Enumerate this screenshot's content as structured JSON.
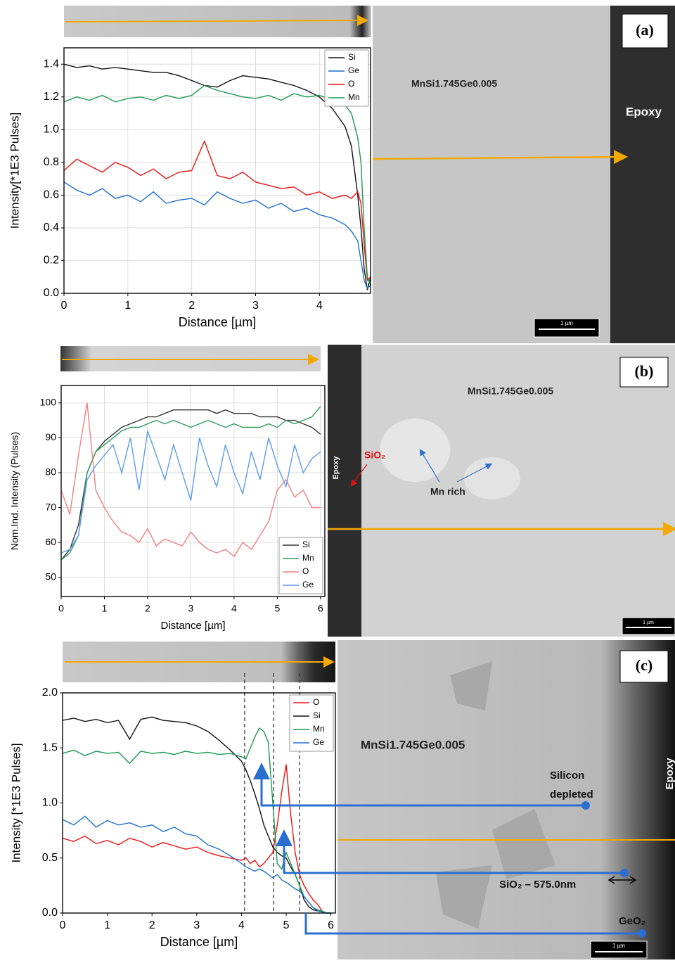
{
  "chart_data": [
    {
      "type": "line",
      "xlabel": "Distance [µm]",
      "ylabel": "Intensity[*1E3 Pulses]",
      "x": [
        0,
        0.2,
        0.4,
        0.6,
        0.8,
        1,
        1.2,
        1.4,
        1.6,
        1.8,
        2,
        2.2,
        2.4,
        2.6,
        2.8,
        3,
        3.2,
        3.4,
        3.6,
        3.8,
        4,
        4.2,
        4.4,
        4.5,
        4.6,
        4.65,
        4.7,
        4.75,
        4.8
      ],
      "xlim": [
        0,
        4.8
      ],
      "xticks": [
        0,
        1,
        2,
        3,
        4
      ],
      "ylim": [
        0,
        1.5
      ],
      "yticks": [
        {
          "value": 0,
          "label": "0.0"
        },
        0.2,
        0.4,
        0.6,
        0.8,
        {
          "value": 1,
          "label": "1.0"
        },
        1.2,
        1.4
      ],
      "grid": true,
      "legend": "upper right",
      "series": [
        {
          "name": "Si",
          "color": "#111111",
          "values": [
            1.4,
            1.38,
            1.39,
            1.37,
            1.38,
            1.37,
            1.36,
            1.35,
            1.35,
            1.33,
            1.3,
            1.27,
            1.26,
            1.3,
            1.33,
            1.32,
            1.31,
            1.29,
            1.27,
            1.24,
            1.2,
            1.13,
            1.02,
            0.9,
            0.6,
            0.4,
            0.15,
            0.02,
            0.1
          ]
        },
        {
          "name": "Ge",
          "color": "#1f6fd0",
          "values": [
            0.68,
            0.63,
            0.6,
            0.64,
            0.58,
            0.6,
            0.56,
            0.62,
            0.55,
            0.57,
            0.58,
            0.54,
            0.62,
            0.58,
            0.55,
            0.57,
            0.52,
            0.55,
            0.5,
            0.52,
            0.48,
            0.46,
            0.42,
            0.38,
            0.32,
            0.2,
            0.08,
            0.03,
            0.05
          ]
        },
        {
          "name": "O",
          "color": "#ee1111",
          "values": [
            0.75,
            0.82,
            0.78,
            0.74,
            0.8,
            0.77,
            0.72,
            0.76,
            0.7,
            0.74,
            0.75,
            0.93,
            0.72,
            0.7,
            0.74,
            0.68,
            0.66,
            0.64,
            0.65,
            0.6,
            0.62,
            0.58,
            0.6,
            0.58,
            0.62,
            0.55,
            0.3,
            0.08,
            0.1
          ]
        },
        {
          "name": "Mn",
          "color": "#1a9a50",
          "values": [
            1.17,
            1.2,
            1.18,
            1.21,
            1.17,
            1.19,
            1.2,
            1.18,
            1.21,
            1.19,
            1.21,
            1.27,
            1.24,
            1.22,
            1.2,
            1.19,
            1.21,
            1.18,
            1.22,
            1.2,
            1.21,
            1.18,
            1.15,
            1.1,
            0.95,
            0.8,
            0.4,
            0.1,
            0.05
          ]
        }
      ]
    },
    {
      "type": "line",
      "xlabel": "Distance [µm]",
      "ylabel": "Nom.Ind. Intensity (Pulses)",
      "x": [
        0,
        0.2,
        0.4,
        0.6,
        0.8,
        1,
        1.2,
        1.4,
        1.6,
        1.8,
        2,
        2.2,
        2.4,
        2.6,
        2.8,
        3,
        3.2,
        3.4,
        3.6,
        3.8,
        4,
        4.2,
        4.4,
        4.6,
        4.8,
        5,
        5.2,
        5.4,
        5.6,
        5.8,
        6
      ],
      "xlim": [
        0,
        6.1
      ],
      "xticks": [
        0,
        1,
        2,
        3,
        4,
        5,
        6
      ],
      "ylim": [
        44.5,
        105
      ],
      "yticks": [
        50,
        60,
        70,
        80,
        90,
        100
      ],
      "grid": true,
      "legend": "lower right",
      "series": [
        {
          "name": "Si",
          "color": "#333333",
          "values": [
            55,
            58,
            65,
            80,
            86,
            89,
            91,
            93,
            94,
            95,
            96,
            96,
            97,
            98,
            98,
            98,
            98,
            98,
            97,
            98,
            97,
            97,
            97,
            96,
            96,
            96,
            95,
            95,
            94,
            93,
            91
          ]
        },
        {
          "name": "Mn",
          "color": "#2e9e5e",
          "values": [
            55,
            57,
            62,
            80,
            86,
            88,
            90,
            92,
            93,
            93,
            94,
            95,
            94,
            95,
            94,
            93,
            94,
            95,
            94,
            93,
            94,
            93,
            93,
            93,
            94,
            93,
            95,
            94,
            95,
            96,
            99
          ]
        },
        {
          "name": "O",
          "color": "#f07f7f",
          "values": [
            75,
            68,
            85,
            100,
            75,
            70,
            66,
            63,
            62,
            60,
            64,
            59,
            61,
            60,
            59,
            63,
            60,
            58,
            57,
            58,
            56,
            60,
            58,
            62,
            66,
            75,
            78,
            73,
            75,
            70,
            70
          ]
        },
        {
          "name": "Ge",
          "color": "#5b9bf0",
          "values": [
            57,
            58,
            62,
            78,
            82,
            85,
            88,
            80,
            90,
            75,
            92,
            85,
            78,
            88,
            80,
            72,
            90,
            82,
            76,
            88,
            80,
            74,
            86,
            78,
            90,
            82,
            76,
            88,
            80,
            84,
            86
          ]
        }
      ]
    },
    {
      "type": "line",
      "xlabel": "Distance [µm]",
      "ylabel": "Intensity [*1E3 Pulses]",
      "x": [
        0,
        0.25,
        0.5,
        0.75,
        1,
        1.25,
        1.5,
        1.75,
        2,
        2.25,
        2.5,
        2.75,
        3,
        3.25,
        3.5,
        3.75,
        4,
        4.1,
        4.2,
        4.3,
        4.4,
        4.5,
        4.6,
        4.7,
        4.8,
        4.9,
        5,
        5.1,
        5.2,
        5.3,
        5.4,
        5.5,
        5.6,
        5.7,
        5.8,
        5.9,
        6
      ],
      "xlim": [
        0,
        6.1
      ],
      "xticks": [
        0,
        1,
        2,
        3,
        4,
        5,
        6
      ],
      "ylim": [
        0,
        2
      ],
      "yticks": [
        {
          "value": 0,
          "label": "0.0"
        },
        0.5,
        {
          "value": 1,
          "label": "1.0"
        },
        1.5,
        {
          "value": 2,
          "label": "2.0"
        }
      ],
      "grid": false,
      "legend": "upper right",
      "vlines": [
        4.07,
        4.72,
        5.3
      ],
      "series": [
        {
          "name": "O",
          "color": "#ee1111",
          "values": [
            0.68,
            0.65,
            0.7,
            0.63,
            0.66,
            0.62,
            0.68,
            0.65,
            0.6,
            0.64,
            0.61,
            0.58,
            0.6,
            0.55,
            0.52,
            0.5,
            0.48,
            0.5,
            0.45,
            0.48,
            0.42,
            0.45,
            0.5,
            0.55,
            0.8,
            1.1,
            1.35,
            0.9,
            0.55,
            0.35,
            0.25,
            0.18,
            0.12,
            0.08,
            0.02,
            0,
            0
          ]
        },
        {
          "name": "Si",
          "color": "#111111",
          "values": [
            1.75,
            1.77,
            1.74,
            1.76,
            1.73,
            1.75,
            1.58,
            1.76,
            1.78,
            1.75,
            1.74,
            1.73,
            1.7,
            1.65,
            1.57,
            1.48,
            1.38,
            1.3,
            1.2,
            1.08,
            0.95,
            0.8,
            0.7,
            0.6,
            0.55,
            0.52,
            0.5,
            0.42,
            0.35,
            0.25,
            0.12,
            0.06,
            0.03,
            0.02,
            0.01,
            0,
            0
          ]
        },
        {
          "name": "Mn",
          "color": "#1a9a50",
          "values": [
            1.45,
            1.48,
            1.43,
            1.47,
            1.45,
            1.46,
            1.36,
            1.47,
            1.45,
            1.46,
            1.44,
            1.47,
            1.45,
            1.46,
            1.44,
            1.45,
            1.42,
            1.4,
            1.5,
            1.6,
            1.68,
            1.65,
            1.55,
            1.0,
            0.45,
            0.4,
            0.55,
            0.45,
            0.35,
            0.25,
            0.15,
            0.1,
            0.05,
            0.03,
            0.02,
            0,
            0
          ]
        },
        {
          "name": "Ge",
          "color": "#1f6fd0",
          "values": [
            0.85,
            0.8,
            0.88,
            0.78,
            0.84,
            0.8,
            0.82,
            0.78,
            0.8,
            0.74,
            0.78,
            0.72,
            0.7,
            0.62,
            0.58,
            0.52,
            0.45,
            0.42,
            0.4,
            0.38,
            0.4,
            0.38,
            0.35,
            0.32,
            0.35,
            0.3,
            0.28,
            0.25,
            0.22,
            0.2,
            0.15,
            0.1,
            0.05,
            0.02,
            0.01,
            0,
            0
          ]
        }
      ]
    }
  ],
  "images": [
    {
      "label": "(a)",
      "phase": "MnSi1.745Ge0.005",
      "epoxy": "Epoxy",
      "scale": "1 µm"
    },
    {
      "label": "(b)",
      "phase": "MnSi1.745Ge0.005",
      "oxide": "SiO₂",
      "mn": "Mn rich",
      "epoxy": "Epoxy",
      "scale": "1 µm"
    },
    {
      "label": "(c)",
      "phase": "MnSi1.745Ge0.005",
      "depleted": [
        "Silicon",
        "depleted"
      ],
      "oxide": "SiO₂ – 575.0nm",
      "geo": "GeO₂",
      "epoxy": "Epoxy",
      "scale": "1 µm"
    }
  ]
}
